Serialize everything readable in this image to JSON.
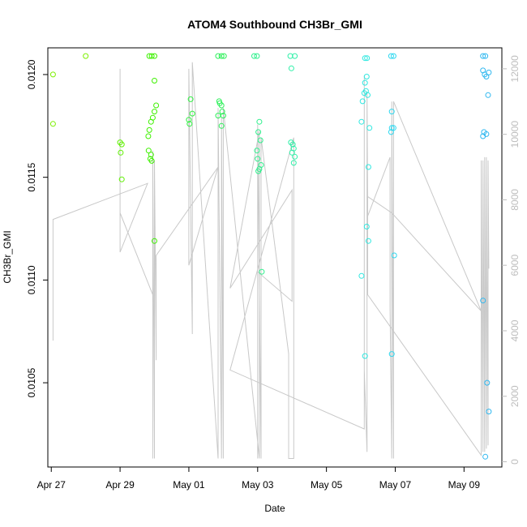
{
  "chart_data": {
    "type": "scatter",
    "title": "ATOM4 Southbound CH3Br_GMI",
    "xlabel": "Date",
    "ylabel": "CH3Br_GMI",
    "x_ticks": [
      "Apr 27",
      "Apr 29",
      "May 01",
      "May 03",
      "May 05",
      "May 07",
      "May 09"
    ],
    "y_ticks": [
      "0.0105",
      "0.0110",
      "0.0115",
      "0.0120"
    ],
    "y2_ticks": [
      "0",
      "2000",
      "4000",
      "6000",
      "8000",
      "10000",
      "12000"
    ],
    "xlim": [
      -0.1,
      13.1
    ],
    "ylim": [
      0.01009,
      0.01213
    ],
    "y2lim": [
      -160,
      12640
    ],
    "grid": false,
    "legend": "none",
    "colors": {
      "altitude_line": "#c8c8c8",
      "right_axis": "#bdbdbd"
    },
    "points": [
      {
        "x": 0.05,
        "y": 0.012,
        "color": "#7cf000"
      },
      {
        "x": 0.05,
        "y": 0.01176,
        "color": "#7cf000"
      },
      {
        "x": 1.0,
        "y": 0.01209,
        "color": "#7cf000"
      },
      {
        "x": 2.0,
        "y": 0.01167,
        "color": "#5ef000"
      },
      {
        "x": 2.05,
        "y": 0.01166,
        "color": "#5ef000"
      },
      {
        "x": 2.02,
        "y": 0.01162,
        "color": "#5ef000"
      },
      {
        "x": 2.05,
        "y": 0.01149,
        "color": "#5ef000"
      },
      {
        "x": 2.85,
        "y": 0.01209,
        "color": "#3ef000"
      },
      {
        "x": 2.92,
        "y": 0.01209,
        "color": "#3ef000"
      },
      {
        "x": 3.0,
        "y": 0.01209,
        "color": "#3ef000"
      },
      {
        "x": 3.0,
        "y": 0.01197,
        "color": "#3ef000"
      },
      {
        "x": 3.05,
        "y": 0.01185,
        "color": "#3ef000"
      },
      {
        "x": 3.0,
        "y": 0.01182,
        "color": "#3ef000"
      },
      {
        "x": 2.95,
        "y": 0.01179,
        "color": "#3ef000"
      },
      {
        "x": 2.9,
        "y": 0.01177,
        "color": "#3ef000"
      },
      {
        "x": 2.85,
        "y": 0.01173,
        "color": "#3ef000"
      },
      {
        "x": 2.82,
        "y": 0.0117,
        "color": "#3ef000"
      },
      {
        "x": 2.83,
        "y": 0.01163,
        "color": "#3ef000"
      },
      {
        "x": 2.9,
        "y": 0.01161,
        "color": "#3ef000"
      },
      {
        "x": 2.88,
        "y": 0.01159,
        "color": "#3ef000"
      },
      {
        "x": 2.92,
        "y": 0.01158,
        "color": "#3ef000"
      },
      {
        "x": 3.0,
        "y": 0.01119,
        "color": "#3ef000"
      },
      {
        "x": 4.05,
        "y": 0.01188,
        "color": "#2ef040"
      },
      {
        "x": 4.1,
        "y": 0.01181,
        "color": "#2ef040"
      },
      {
        "x": 4.0,
        "y": 0.01178,
        "color": "#2ef040"
      },
      {
        "x": 4.02,
        "y": 0.01176,
        "color": "#2ef040"
      },
      {
        "x": 4.85,
        "y": 0.01209,
        "color": "#2ef05a"
      },
      {
        "x": 4.95,
        "y": 0.01209,
        "color": "#2ef05a"
      },
      {
        "x": 5.02,
        "y": 0.01209,
        "color": "#2ef05a"
      },
      {
        "x": 4.88,
        "y": 0.01187,
        "color": "#2ef05a"
      },
      {
        "x": 4.9,
        "y": 0.01186,
        "color": "#2ef05a"
      },
      {
        "x": 4.95,
        "y": 0.01185,
        "color": "#2ef05a"
      },
      {
        "x": 4.97,
        "y": 0.01182,
        "color": "#2ef05a"
      },
      {
        "x": 5.0,
        "y": 0.0118,
        "color": "#2ef05a"
      },
      {
        "x": 4.85,
        "y": 0.0118,
        "color": "#2ef05a"
      },
      {
        "x": 4.95,
        "y": 0.01175,
        "color": "#2ef05a"
      },
      {
        "x": 5.9,
        "y": 0.01209,
        "color": "#2ef08c"
      },
      {
        "x": 5.98,
        "y": 0.01209,
        "color": "#2ef08c"
      },
      {
        "x": 6.05,
        "y": 0.01177,
        "color": "#2ef08c"
      },
      {
        "x": 6.02,
        "y": 0.01172,
        "color": "#2ef08c"
      },
      {
        "x": 6.08,
        "y": 0.01168,
        "color": "#2ef08c"
      },
      {
        "x": 5.98,
        "y": 0.01163,
        "color": "#2ef08c"
      },
      {
        "x": 6.0,
        "y": 0.01159,
        "color": "#2ef08c"
      },
      {
        "x": 6.1,
        "y": 0.01156,
        "color": "#2ef08c"
      },
      {
        "x": 6.05,
        "y": 0.01154,
        "color": "#2ef08c"
      },
      {
        "x": 6.02,
        "y": 0.01153,
        "color": "#2ef08c"
      },
      {
        "x": 6.12,
        "y": 0.01104,
        "color": "#2ef08c"
      },
      {
        "x": 6.95,
        "y": 0.01209,
        "color": "#2ef0a8"
      },
      {
        "x": 7.08,
        "y": 0.01209,
        "color": "#2ef0a8"
      },
      {
        "x": 6.98,
        "y": 0.01203,
        "color": "#2ef0a8"
      },
      {
        "x": 6.97,
        "y": 0.01167,
        "color": "#2ef0a8"
      },
      {
        "x": 7.02,
        "y": 0.01166,
        "color": "#2ef0a8"
      },
      {
        "x": 7.05,
        "y": 0.01164,
        "color": "#2ef0a8"
      },
      {
        "x": 7.0,
        "y": 0.01162,
        "color": "#2ef0a8"
      },
      {
        "x": 7.08,
        "y": 0.0116,
        "color": "#2ef0a8"
      },
      {
        "x": 7.05,
        "y": 0.01157,
        "color": "#2ef0a8"
      },
      {
        "x": 9.12,
        "y": 0.01208,
        "color": "#2ee8e0"
      },
      {
        "x": 9.18,
        "y": 0.01208,
        "color": "#2ee8e0"
      },
      {
        "x": 9.17,
        "y": 0.01199,
        "color": "#2ee8e0"
      },
      {
        "x": 9.12,
        "y": 0.01196,
        "color": "#2ee8e0"
      },
      {
        "x": 9.15,
        "y": 0.01192,
        "color": "#2ee8e0"
      },
      {
        "x": 9.1,
        "y": 0.01191,
        "color": "#2ee8e0"
      },
      {
        "x": 9.2,
        "y": 0.0119,
        "color": "#2ee8e0"
      },
      {
        "x": 9.05,
        "y": 0.01187,
        "color": "#2ee8e0"
      },
      {
        "x": 9.02,
        "y": 0.01177,
        "color": "#2ee8e0"
      },
      {
        "x": 9.25,
        "y": 0.01174,
        "color": "#2ee8e0"
      },
      {
        "x": 9.22,
        "y": 0.01155,
        "color": "#2ee8e0"
      },
      {
        "x": 9.17,
        "y": 0.01126,
        "color": "#2ee8e0"
      },
      {
        "x": 9.22,
        "y": 0.01119,
        "color": "#2ee8e0"
      },
      {
        "x": 9.02,
        "y": 0.01102,
        "color": "#2ee8e0"
      },
      {
        "x": 9.12,
        "y": 0.01063,
        "color": "#2ee8e0"
      },
      {
        "x": 9.88,
        "y": 0.01209,
        "color": "#2ed8f0"
      },
      {
        "x": 9.95,
        "y": 0.01209,
        "color": "#2ed8f0"
      },
      {
        "x": 9.9,
        "y": 0.01182,
        "color": "#2ed8f0"
      },
      {
        "x": 9.9,
        "y": 0.01174,
        "color": "#2ed8f0"
      },
      {
        "x": 9.95,
        "y": 0.01174,
        "color": "#2ed8f0"
      },
      {
        "x": 9.88,
        "y": 0.01172,
        "color": "#2ed8f0"
      },
      {
        "x": 9.97,
        "y": 0.01112,
        "color": "#2ed8f0"
      },
      {
        "x": 9.9,
        "y": 0.01064,
        "color": "#2ed8f0"
      },
      {
        "x": 12.55,
        "y": 0.01209,
        "color": "#30b8f0"
      },
      {
        "x": 12.62,
        "y": 0.01209,
        "color": "#30b8f0"
      },
      {
        "x": 12.55,
        "y": 0.01202,
        "color": "#30b8f0"
      },
      {
        "x": 12.6,
        "y": 0.012,
        "color": "#30b8f0"
      },
      {
        "x": 12.72,
        "y": 0.01201,
        "color": "#30b8f0"
      },
      {
        "x": 12.65,
        "y": 0.01199,
        "color": "#30b8f0"
      },
      {
        "x": 12.7,
        "y": 0.0119,
        "color": "#30b8f0"
      },
      {
        "x": 12.58,
        "y": 0.01172,
        "color": "#30b8f0"
      },
      {
        "x": 12.65,
        "y": 0.01171,
        "color": "#30b8f0"
      },
      {
        "x": 12.55,
        "y": 0.0117,
        "color": "#30b8f0"
      },
      {
        "x": 12.55,
        "y": 0.0109,
        "color": "#30b8f0"
      },
      {
        "x": 12.67,
        "y": 0.0105,
        "color": "#30b8f0"
      },
      {
        "x": 12.72,
        "y": 0.01036,
        "color": "#30b8f0"
      },
      {
        "x": 12.62,
        "y": 0.01014,
        "color": "#30b8f0"
      }
    ],
    "altitude_line": [
      [
        0.05,
        3700
      ],
      [
        0.05,
        7400
      ],
      [
        2.8,
        8500
      ],
      [
        2.0,
        6400
      ],
      [
        2.0,
        12000
      ],
      [
        2.0,
        7600
      ],
      [
        2.95,
        5100
      ],
      [
        2.95,
        100
      ],
      [
        2.95,
        9500
      ],
      [
        3.0,
        100
      ],
      [
        3.0,
        9200
      ],
      [
        3.05,
        3100
      ],
      [
        3.05,
        6300
      ],
      [
        4.85,
        9000
      ],
      [
        4.0,
        6000
      ],
      [
        4.0,
        12000
      ],
      [
        4.1,
        3900
      ],
      [
        4.1,
        12200
      ],
      [
        4.85,
        100
      ],
      [
        4.85,
        10800
      ],
      [
        4.95,
        100
      ],
      [
        4.95,
        10500
      ],
      [
        5.0,
        100
      ],
      [
        5.0,
        10800
      ],
      [
        6.05,
        100
      ],
      [
        6.05,
        10100
      ],
      [
        5.2,
        5300
      ],
      [
        7.0,
        8300
      ],
      [
        7.0,
        4900
      ],
      [
        6.0,
        5800
      ],
      [
        6.0,
        100
      ],
      [
        6.0,
        10300
      ],
      [
        6.1,
        100
      ],
      [
        6.1,
        9900
      ],
      [
        6.9,
        3300
      ],
      [
        6.9,
        100
      ],
      [
        7.05,
        100
      ],
      [
        7.05,
        9900
      ],
      [
        5.2,
        2800
      ],
      [
        9.1,
        1000
      ],
      [
        9.1,
        11800
      ],
      [
        9.1,
        2800
      ],
      [
        9.18,
        300
      ],
      [
        9.18,
        11300
      ],
      [
        9.2,
        7800
      ],
      [
        9.2,
        7500
      ],
      [
        9.85,
        9300
      ],
      [
        9.85,
        4700
      ],
      [
        9.9,
        100
      ],
      [
        9.9,
        11000
      ],
      [
        9.95,
        100
      ],
      [
        9.95,
        11000
      ],
      [
        12.5,
        4600
      ],
      [
        9.9,
        7600
      ],
      [
        9.2,
        8100
      ],
      [
        9.2,
        5100
      ],
      [
        12.5,
        200
      ],
      [
        12.5,
        9200
      ],
      [
        12.55,
        300
      ],
      [
        12.55,
        9200
      ],
      [
        12.6,
        300
      ],
      [
        12.6,
        9300
      ],
      [
        12.65,
        400
      ],
      [
        12.65,
        9300
      ],
      [
        12.7,
        500
      ],
      [
        12.7,
        9200
      ],
      [
        12.72,
        5900
      ]
    ]
  }
}
